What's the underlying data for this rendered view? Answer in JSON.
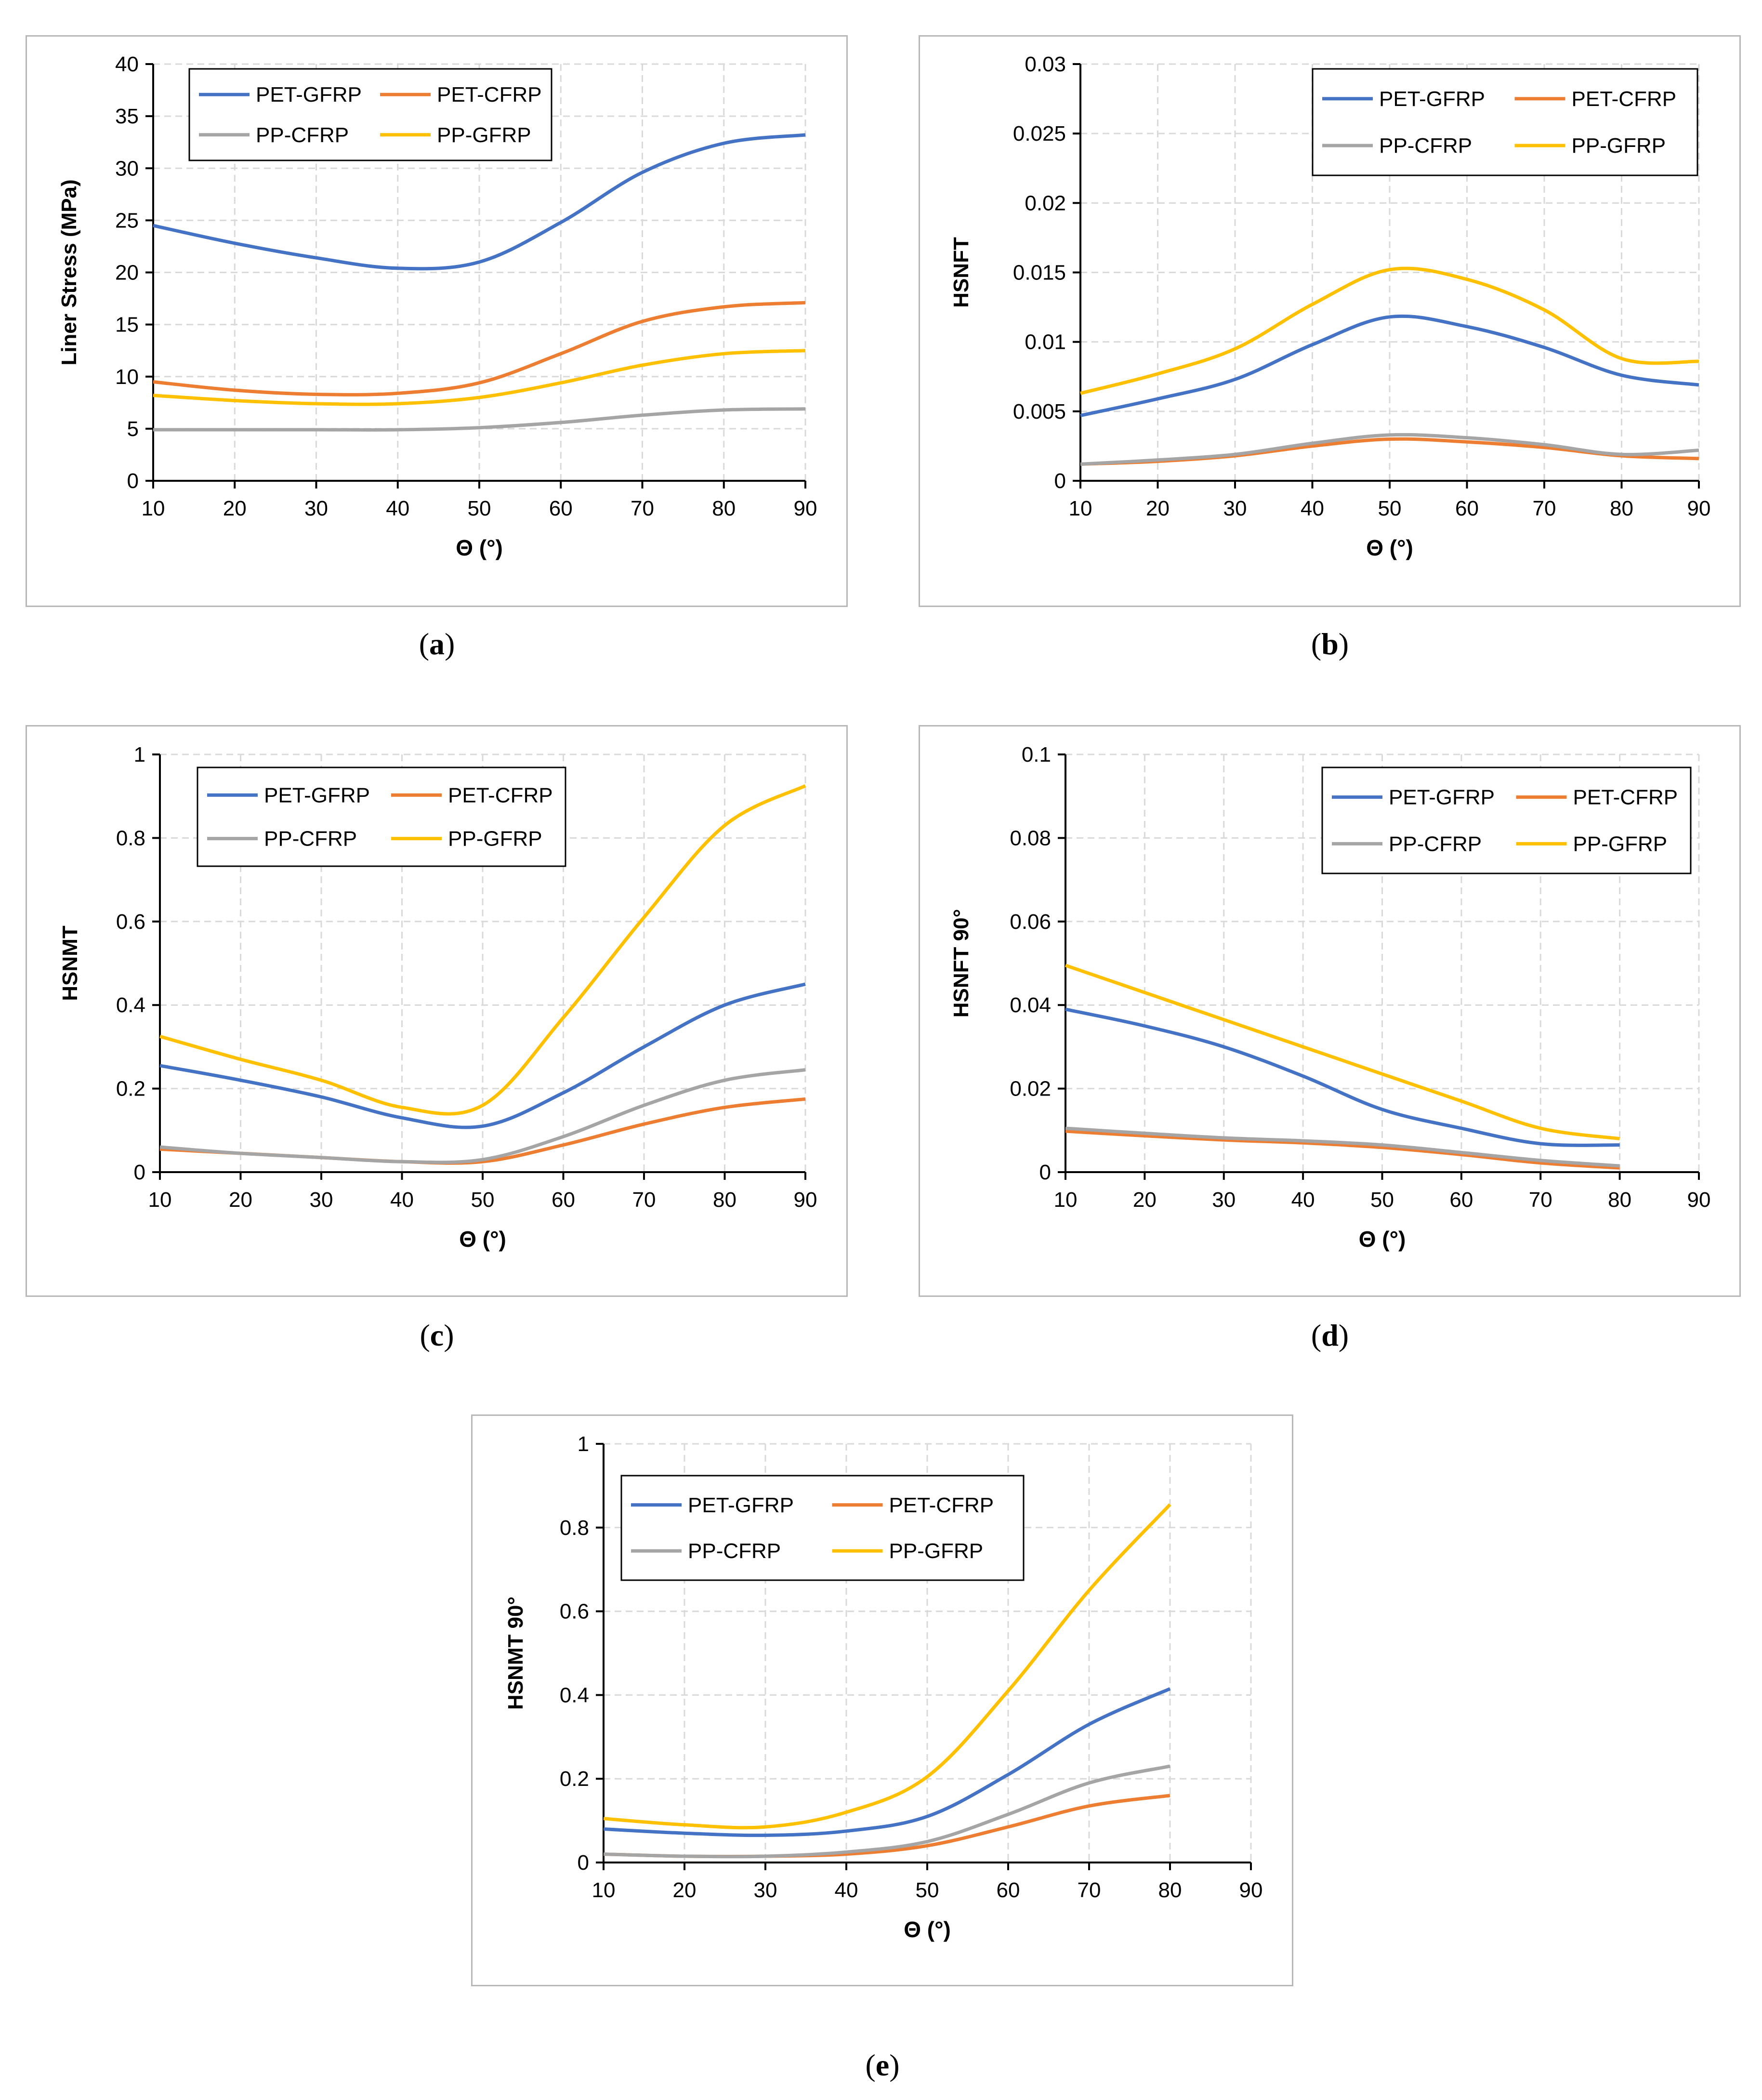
{
  "colors": {
    "PET-GFRP": "#4472c4",
    "PET-CFRP": "#ed7d31",
    "PP-CFRP": "#a5a5a5",
    "PP-GFRP": "#ffc000",
    "grid": "#d9d9d9",
    "axis": "#000000"
  },
  "chart_data": [
    {
      "id": "a",
      "type": "line",
      "caption_letter": "a",
      "xlabel": "Θ (°)",
      "ylabel": "Liner Stress (MPa)",
      "xlim": [
        10,
        90
      ],
      "ylim": [
        0,
        40
      ],
      "xticks": [
        "10",
        "20",
        "30",
        "40",
        "50",
        "60",
        "70",
        "80",
        "90"
      ],
      "yticks": [
        "0",
        "5",
        "10",
        "15",
        "20",
        "25",
        "30",
        "35",
        "40"
      ],
      "legend": [
        "PET-GFRP",
        "PET-CFRP",
        "PP-CFRP",
        "PP-GFRP"
      ],
      "x": [
        10,
        20,
        30,
        40,
        50,
        60,
        70,
        80,
        90
      ],
      "series": [
        {
          "name": "PET-GFRP",
          "values": [
            24.5,
            22.8,
            21.4,
            20.4,
            21.0,
            24.8,
            29.6,
            32.4,
            33.2
          ]
        },
        {
          "name": "PET-CFRP",
          "values": [
            9.5,
            8.7,
            8.3,
            8.4,
            9.4,
            12.2,
            15.3,
            16.7,
            17.1
          ]
        },
        {
          "name": "PP-CFRP",
          "values": [
            4.9,
            4.9,
            4.9,
            4.9,
            5.1,
            5.6,
            6.3,
            6.8,
            6.9
          ]
        },
        {
          "name": "PP-GFRP",
          "values": [
            8.2,
            7.7,
            7.4,
            7.4,
            8.0,
            9.4,
            11.1,
            12.2,
            12.5
          ]
        }
      ]
    },
    {
      "id": "b",
      "type": "line",
      "caption_letter": "b",
      "xlabel": "Θ (°)",
      "ylabel": "HSNFT",
      "xlim": [
        10,
        90
      ],
      "ylim": [
        0,
        0.03
      ],
      "xticks": [
        "10",
        "20",
        "30",
        "40",
        "50",
        "60",
        "70",
        "80",
        "90"
      ],
      "yticks": [
        "0",
        "0.005",
        "0.01",
        "0.015",
        "0.02",
        "0.025",
        "0.03"
      ],
      "legend": [
        "PET-GFRP",
        "PET-CFRP",
        "PP-CFRP",
        "PP-GFRP"
      ],
      "x": [
        10,
        20,
        30,
        40,
        50,
        60,
        70,
        80,
        90
      ],
      "series": [
        {
          "name": "PET-GFRP",
          "values": [
            0.0047,
            0.0059,
            0.0073,
            0.0098,
            0.0118,
            0.0111,
            0.0096,
            0.0076,
            0.0069
          ]
        },
        {
          "name": "PET-CFRP",
          "values": [
            0.0012,
            0.0014,
            0.0018,
            0.0025,
            0.003,
            0.0028,
            0.0024,
            0.0018,
            0.0016
          ]
        },
        {
          "name": "PP-CFRP",
          "values": [
            0.0012,
            0.0015,
            0.0019,
            0.0027,
            0.0033,
            0.0031,
            0.0026,
            0.0019,
            0.0022
          ]
        },
        {
          "name": "PP-GFRP",
          "values": [
            0.0063,
            0.0077,
            0.0095,
            0.0127,
            0.0152,
            0.0145,
            0.0123,
            0.0088,
            0.0086
          ]
        }
      ]
    },
    {
      "id": "c",
      "type": "line",
      "caption_letter": "c",
      "xlabel": "Θ (°)",
      "ylabel": "HSNMT",
      "xlim": [
        10,
        90
      ],
      "ylim": [
        0,
        1
      ],
      "xticks": [
        "10",
        "20",
        "30",
        "40",
        "50",
        "60",
        "70",
        "80",
        "90"
      ],
      "yticks": [
        "0",
        "0.2",
        "0.4",
        "0.6",
        "0.8",
        "1"
      ],
      "legend": [
        "PET-GFRP",
        "PET-CFRP",
        "PP-CFRP",
        "PP-GFRP"
      ],
      "x": [
        10,
        20,
        30,
        40,
        50,
        60,
        70,
        80,
        90
      ],
      "series": [
        {
          "name": "PET-GFRP",
          "values": [
            0.255,
            0.22,
            0.18,
            0.13,
            0.11,
            0.19,
            0.3,
            0.4,
            0.45
          ]
        },
        {
          "name": "PET-CFRP",
          "values": [
            0.055,
            0.045,
            0.035,
            0.025,
            0.025,
            0.065,
            0.115,
            0.155,
            0.175
          ]
        },
        {
          "name": "PP-CFRP",
          "values": [
            0.06,
            0.045,
            0.035,
            0.025,
            0.03,
            0.085,
            0.16,
            0.22,
            0.245
          ]
        },
        {
          "name": "PP-GFRP",
          "values": [
            0.325,
            0.27,
            0.22,
            0.155,
            0.16,
            0.37,
            0.61,
            0.83,
            0.925
          ]
        }
      ]
    },
    {
      "id": "d",
      "type": "line",
      "caption_letter": "d",
      "xlabel": "Θ (°)",
      "ylabel": "HSNFT 90°",
      "xlim": [
        10,
        90
      ],
      "ylim": [
        0,
        0.1
      ],
      "xticks": [
        "10",
        "20",
        "30",
        "40",
        "50",
        "60",
        "70",
        "80",
        "90"
      ],
      "yticks": [
        "0",
        "0.02",
        "0.04",
        "0.06",
        "0.08",
        "0.1"
      ],
      "legend": [
        "PET-GFRP",
        "PET-CFRP",
        "PP-CFRP",
        "PP-GFRP"
      ],
      "x": [
        10,
        20,
        30,
        40,
        50,
        60,
        70,
        80
      ],
      "series": [
        {
          "name": "PET-GFRP",
          "values": [
            0.039,
            0.035,
            0.03,
            0.023,
            0.015,
            0.0105,
            0.0068,
            0.0065
          ]
        },
        {
          "name": "PET-CFRP",
          "values": [
            0.0098,
            0.0087,
            0.0077,
            0.007,
            0.0059,
            0.0042,
            0.0022,
            0.001
          ]
        },
        {
          "name": "PP-CFRP",
          "values": [
            0.0105,
            0.0093,
            0.0082,
            0.0075,
            0.0065,
            0.0047,
            0.0028,
            0.0015
          ]
        },
        {
          "name": "PP-GFRP",
          "values": [
            0.0495,
            0.043,
            0.0365,
            0.03,
            0.0235,
            0.017,
            0.0105,
            0.008
          ]
        }
      ]
    },
    {
      "id": "e",
      "type": "line",
      "caption_letter": "e",
      "xlabel": "Θ (°)",
      "ylabel": "HSNMT 90°",
      "xlim": [
        10,
        90
      ],
      "ylim": [
        0,
        1
      ],
      "xticks": [
        "10",
        "20",
        "30",
        "40",
        "50",
        "60",
        "70",
        "80",
        "90"
      ],
      "yticks": [
        "0",
        "0.2",
        "0.4",
        "0.6",
        "0.8",
        "1"
      ],
      "legend": [
        "PET-GFRP",
        "PET-CFRP",
        "PP-CFRP",
        "PP-GFRP"
      ],
      "x": [
        10,
        20,
        30,
        40,
        50,
        60,
        70,
        80
      ],
      "series": [
        {
          "name": "PET-GFRP",
          "values": [
            0.08,
            0.07,
            0.065,
            0.075,
            0.11,
            0.21,
            0.33,
            0.415
          ]
        },
        {
          "name": "PET-CFRP",
          "values": [
            0.02,
            0.015,
            0.015,
            0.02,
            0.04,
            0.085,
            0.135,
            0.16
          ]
        },
        {
          "name": "PP-CFRP",
          "values": [
            0.02,
            0.015,
            0.015,
            0.025,
            0.05,
            0.115,
            0.19,
            0.23
          ]
        },
        {
          "name": "PP-GFRP",
          "values": [
            0.105,
            0.09,
            0.085,
            0.12,
            0.205,
            0.41,
            0.65,
            0.855
          ]
        }
      ]
    }
  ]
}
